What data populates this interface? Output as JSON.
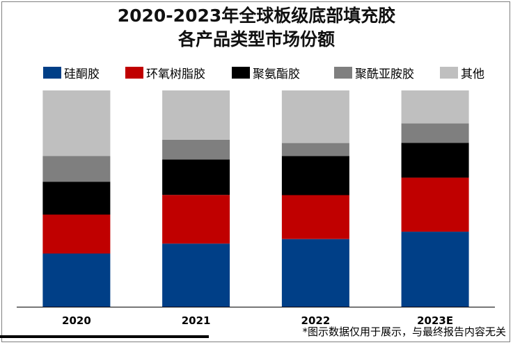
{
  "chart_data": {
    "type": "bar",
    "stacked": true,
    "normalized": true,
    "title": [
      "2020-2023年全球板级底部填充胶",
      "各产品类型市场份额"
    ],
    "categories": [
      "2020",
      "2021",
      "2022",
      "2023E"
    ],
    "series": [
      {
        "name": "硅酮胶",
        "color": "#003f87",
        "values": [
          0.246,
          0.292,
          0.313,
          0.347
        ]
      },
      {
        "name": "环氧树脂胶",
        "color": "#c00000",
        "values": [
          0.18,
          0.225,
          0.203,
          0.25
        ]
      },
      {
        "name": "聚氨酯胶",
        "color": "#000000",
        "values": [
          0.152,
          0.164,
          0.181,
          0.161
        ]
      },
      {
        "name": "聚酰亚胺胶",
        "color": "#7f7f7f",
        "values": [
          0.119,
          0.091,
          0.06,
          0.09
        ]
      },
      {
        "name": "其他",
        "color": "#bfbfbf",
        "values": [
          0.303,
          0.228,
          0.243,
          0.152
        ]
      }
    ],
    "ylim": [
      0,
      1
    ],
    "legend_position": "top"
  },
  "footnote": "*图示数据仅用于展示，与最终报告内容无关"
}
